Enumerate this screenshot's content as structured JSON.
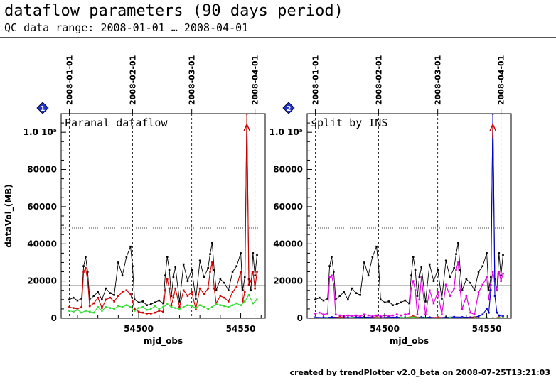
{
  "header": {
    "title": "dataflow parameters (90 days period)",
    "subtitle": "QC data range: 2008-01-01 … 2008-04-01"
  },
  "footer": "created by trendPlotter v2.0_beta on 2008-07-25T13:21:03",
  "chart_data": [
    {
      "type": "line",
      "badge": "1",
      "panel_label": "Paranal_dataflow",
      "xlabel": "mjd_obs",
      "ylabel": "dataVol_(MB)",
      "xlim": [
        54462,
        54562
      ],
      "ylim": [
        0,
        110000
      ],
      "xticks": [
        54500,
        54550
      ],
      "yticks": [
        0,
        20000,
        40000,
        60000,
        80000,
        100000
      ],
      "ytick_labels": [
        "0",
        "20000",
        "40000",
        "60000",
        "80000",
        "1.0 10⁵"
      ],
      "date_marks": [
        {
          "x": 54466,
          "label": "2008-01-01"
        },
        {
          "x": 54497,
          "label": "2008-02-01"
        },
        {
          "x": 54526,
          "label": "2008-03-01"
        },
        {
          "x": 54557,
          "label": "2008-04-01"
        }
      ],
      "reference_lines": [
        17500,
        48500
      ],
      "series": [
        {
          "color": "#000000",
          "x": [
            54466,
            54468,
            54470,
            54472,
            54473,
            54474,
            54475,
            54476,
            54478,
            54480,
            54482,
            54484,
            54486,
            54488,
            54490,
            54492,
            54494,
            54496,
            54497,
            54498,
            54500,
            54502,
            54504,
            54506,
            54508,
            54510,
            54512,
            54513,
            54514,
            54515,
            54516,
            54517,
            54518,
            54520,
            54522,
            54524,
            54526,
            54528,
            54530,
            54532,
            54534,
            54535,
            54536,
            54537,
            54538,
            54540,
            54542,
            54544,
            54546,
            54548,
            54550,
            54551,
            54552,
            54553,
            54554,
            54555,
            54556,
            54557,
            54558
          ],
          "y": [
            10000,
            11000,
            9500,
            10500,
            28000,
            33000,
            25000,
            10000,
            12000,
            14000,
            10000,
            16000,
            13500,
            12500,
            30000,
            23000,
            33000,
            38500,
            28000,
            10000,
            8500,
            9000,
            7000,
            7500,
            8500,
            9500,
            8000,
            23000,
            33000,
            26000,
            12000,
            22000,
            27500,
            9000,
            29000,
            20000,
            26000,
            10500,
            31000,
            22000,
            27000,
            34500,
            40500,
            26000,
            15000,
            21000,
            19000,
            15000,
            25000,
            28000,
            35000,
            15000,
            22000,
            110000,
            21000,
            15000,
            35000,
            23000,
            34000
          ]
        },
        {
          "color": "#cc0000",
          "x": [
            54466,
            54468,
            54470,
            54472,
            54473,
            54474,
            54475,
            54476,
            54478,
            54480,
            54482,
            54484,
            54486,
            54488,
            54490,
            54492,
            54494,
            54496,
            54497,
            54498,
            54500,
            54502,
            54504,
            54506,
            54508,
            54510,
            54512,
            54513,
            54514,
            54515,
            54516,
            54517,
            54518,
            54520,
            54522,
            54524,
            54526,
            54528,
            54530,
            54532,
            54534,
            54535,
            54536,
            54537,
            54538,
            54540,
            54542,
            54544,
            54546,
            54548,
            54550,
            54551,
            54552,
            54553,
            54554,
            54555,
            54556,
            54557,
            54558
          ],
          "y": [
            6000,
            5500,
            5000,
            6000,
            25000,
            27000,
            20000,
            6500,
            8000,
            11000,
            5500,
            10000,
            11000,
            9000,
            12000,
            14000,
            15000,
            13000,
            9000,
            5000,
            3500,
            3000,
            2500,
            2500,
            3000,
            4000,
            3500,
            15000,
            21000,
            16000,
            7000,
            11000,
            16000,
            6000,
            15000,
            12000,
            14000,
            5000,
            16000,
            13000,
            16000,
            25000,
            30000,
            16000,
            8000,
            12000,
            11000,
            9000,
            14000,
            17000,
            25000,
            9000,
            14000,
            110000,
            18000,
            20000,
            25000,
            16000,
            25000
          ]
        },
        {
          "color": "#33dd33",
          "x": [
            54466,
            54468,
            54470,
            54472,
            54474,
            54476,
            54478,
            54480,
            54482,
            54484,
            54486,
            54488,
            54490,
            54492,
            54494,
            54496,
            54498,
            54500,
            54502,
            54504,
            54506,
            54508,
            54510,
            54512,
            54514,
            54516,
            54518,
            54520,
            54522,
            54524,
            54526,
            54528,
            54530,
            54532,
            54534,
            54536,
            54538,
            54540,
            54542,
            54544,
            54546,
            54548,
            54550,
            54552,
            54554,
            54556,
            54558
          ],
          "y": [
            4000,
            3500,
            4500,
            3000,
            4000,
            3500,
            3000,
            6000,
            4000,
            6000,
            5500,
            5000,
            6500,
            6000,
            7000,
            6000,
            4000,
            5500,
            6000,
            4500,
            5000,
            6500,
            5000,
            6000,
            7500,
            6000,
            5500,
            5000,
            6000,
            7000,
            6500,
            5500,
            7000,
            6000,
            5000,
            6000,
            7500,
            7000,
            6500,
            6000,
            7000,
            8000,
            7000,
            9000,
            12500,
            8000,
            10000
          ]
        }
      ]
    },
    {
      "type": "line",
      "badge": "2",
      "panel_label": "split_by_INS",
      "xlabel": "mjd_obs",
      "ylabel": "dataVol_(MB)",
      "xlim": [
        54462,
        54562
      ],
      "ylim": [
        0,
        110000
      ],
      "xticks": [
        54500,
        54550
      ],
      "yticks": [
        0,
        20000,
        40000,
        60000,
        80000,
        100000
      ],
      "ytick_labels": [
        "0",
        "20000",
        "40000",
        "60000",
        "80000",
        "1.0 10⁵"
      ],
      "date_marks": [
        {
          "x": 54466,
          "label": "2008-01-01"
        },
        {
          "x": 54497,
          "label": "2008-02-01"
        },
        {
          "x": 54526,
          "label": "2008-03-01"
        },
        {
          "x": 54557,
          "label": "2008-04-01"
        }
      ],
      "reference_lines": [
        17500,
        48500
      ],
      "series": [
        {
          "color": "#000000",
          "x": [
            54466,
            54468,
            54470,
            54472,
            54473,
            54474,
            54475,
            54476,
            54478,
            54480,
            54482,
            54484,
            54486,
            54488,
            54490,
            54492,
            54494,
            54496,
            54497,
            54498,
            54500,
            54502,
            54504,
            54506,
            54508,
            54510,
            54512,
            54513,
            54514,
            54515,
            54516,
            54517,
            54518,
            54520,
            54522,
            54524,
            54526,
            54528,
            54530,
            54532,
            54534,
            54535,
            54536,
            54537,
            54538,
            54540,
            54542,
            54544,
            54546,
            54548,
            54550,
            54551,
            54552,
            54553,
            54554,
            54555,
            54556,
            54557,
            54558
          ],
          "y": [
            10000,
            11000,
            9500,
            10500,
            28000,
            33000,
            25000,
            10000,
            12000,
            14000,
            10000,
            16000,
            13500,
            12500,
            30000,
            23000,
            33000,
            38500,
            28000,
            10000,
            8500,
            9000,
            7000,
            7500,
            8500,
            9500,
            8000,
            23000,
            33000,
            26000,
            12000,
            22000,
            27500,
            9000,
            29000,
            20000,
            26000,
            10500,
            31000,
            22000,
            27000,
            34500,
            40500,
            26000,
            15000,
            21000,
            19000,
            15000,
            25000,
            28000,
            35000,
            15000,
            22000,
            110000,
            21000,
            15000,
            35000,
            23000,
            34000
          ]
        },
        {
          "color": "#dd00dd",
          "x": [
            54466,
            54468,
            54470,
            54472,
            54473,
            54474,
            54475,
            54476,
            54478,
            54480,
            54482,
            54484,
            54486,
            54488,
            54490,
            54492,
            54494,
            54496,
            54498,
            54500,
            54502,
            54504,
            54506,
            54508,
            54510,
            54512,
            54513,
            54514,
            54515,
            54516,
            54517,
            54518,
            54520,
            54522,
            54524,
            54526,
            54528,
            54530,
            54532,
            54534,
            54535,
            54536,
            54537,
            54538,
            54540,
            54542,
            54544,
            54546,
            54548,
            54550,
            54551,
            54552,
            54553,
            54554,
            54555,
            54556,
            54557,
            54558
          ],
          "y": [
            2500,
            3000,
            2000,
            2500,
            22000,
            23000,
            18000,
            2000,
            1500,
            1000,
            1500,
            1000,
            1500,
            1000,
            2000,
            1500,
            1000,
            1500,
            1000,
            1500,
            1000,
            1500,
            2000,
            1500,
            2000,
            2500,
            16000,
            20000,
            15000,
            2000,
            10000,
            22000,
            2000,
            15000,
            8000,
            14000,
            2000,
            18000,
            12000,
            16000,
            26000,
            30000,
            15000,
            5000,
            12000,
            3000,
            2000,
            14000,
            18000,
            22000,
            10000,
            18000,
            25000,
            20000,
            15000,
            25000,
            20000,
            24000
          ]
        },
        {
          "color": "#0000cc",
          "x": [
            54466,
            54470,
            54474,
            54478,
            54482,
            54486,
            54490,
            54494,
            54498,
            54502,
            54506,
            54510,
            54514,
            54518,
            54522,
            54526,
            54530,
            54534,
            54538,
            54542,
            54546,
            54548,
            54550,
            54551,
            54552,
            54553,
            54554,
            54555,
            54556,
            54558
          ],
          "y": [
            500,
            400,
            600,
            500,
            400,
            500,
            600,
            500,
            400,
            500,
            600,
            400,
            500,
            600,
            500,
            400,
            500,
            700,
            600,
            500,
            1000,
            2000,
            5000,
            3000,
            15000,
            110000,
            12000,
            3000,
            1500,
            1000
          ]
        },
        {
          "color": "#cc0000",
          "x": [
            54466,
            54472,
            54478,
            54484,
            54490,
            54496,
            54502,
            54508,
            54514,
            54520,
            54526,
            54532,
            54538,
            54544,
            54550,
            54553,
            54556,
            54558
          ],
          "y": [
            0,
            0,
            500,
            0,
            0,
            500,
            0,
            0,
            1000,
            0,
            500,
            0,
            0,
            500,
            0,
            0,
            500,
            0
          ]
        },
        {
          "color": "#33dd33",
          "x": [
            54466,
            54472,
            54478,
            54484,
            54490,
            54496,
            54502,
            54508,
            54514,
            54520,
            54526,
            54532,
            54538,
            54544,
            54550,
            54553,
            54556,
            54558
          ],
          "y": [
            0,
            200,
            0,
            300,
            0,
            200,
            0,
            300,
            500,
            200,
            0,
            300,
            0,
            200,
            300,
            0,
            200,
            300
          ]
        }
      ]
    }
  ]
}
